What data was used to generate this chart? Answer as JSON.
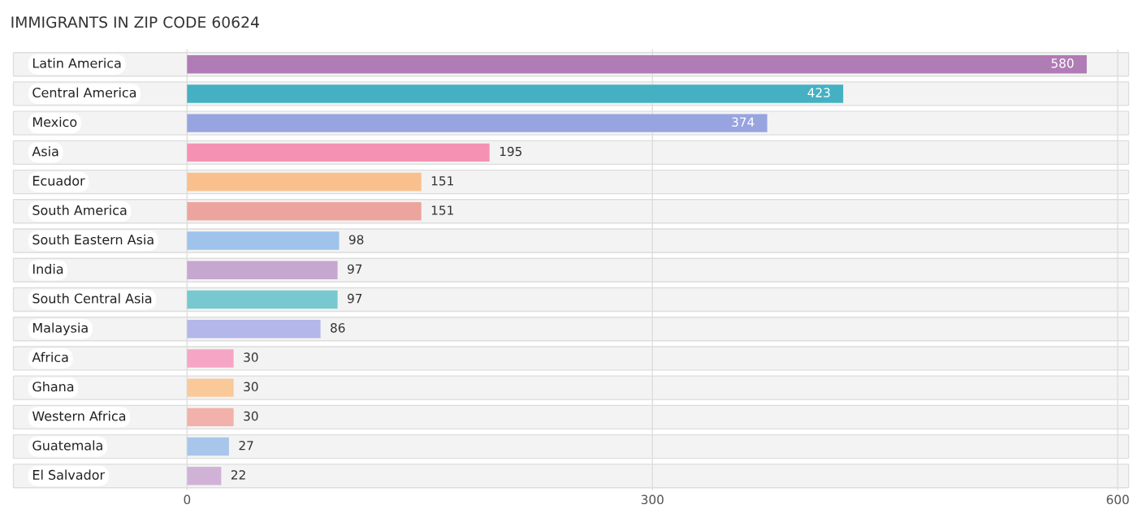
{
  "chart_data": {
    "type": "bar",
    "orientation": "horizontal",
    "title": "IMMIGRANTS IN ZIP CODE 60624",
    "categories": [
      "Latin America",
      "Central America",
      "Mexico",
      "Asia",
      "Ecuador",
      "South America",
      "South Eastern Asia",
      "India",
      "South Central Asia",
      "Malaysia",
      "Africa",
      "Ghana",
      "Western Africa",
      "Guatemala",
      "El Salvador"
    ],
    "values": [
      580,
      423,
      374,
      195,
      151,
      151,
      98,
      97,
      97,
      86,
      30,
      30,
      30,
      27,
      22
    ],
    "colors": [
      "#b07cb5",
      "#45b0c2",
      "#97a4e0",
      "#f592b4",
      "#f9c08e",
      "#eca59e",
      "#9fc3ea",
      "#c6a7d0",
      "#77c8cf",
      "#b3b7e9",
      "#f6a6c5",
      "#f9c99a",
      "#f2b1aa",
      "#a8c6ec",
      "#d0b2d7"
    ],
    "xlim": [
      -114,
      609
    ],
    "xticks": [
      0,
      300,
      600
    ],
    "grid": "x",
    "data_labels": true
  }
}
